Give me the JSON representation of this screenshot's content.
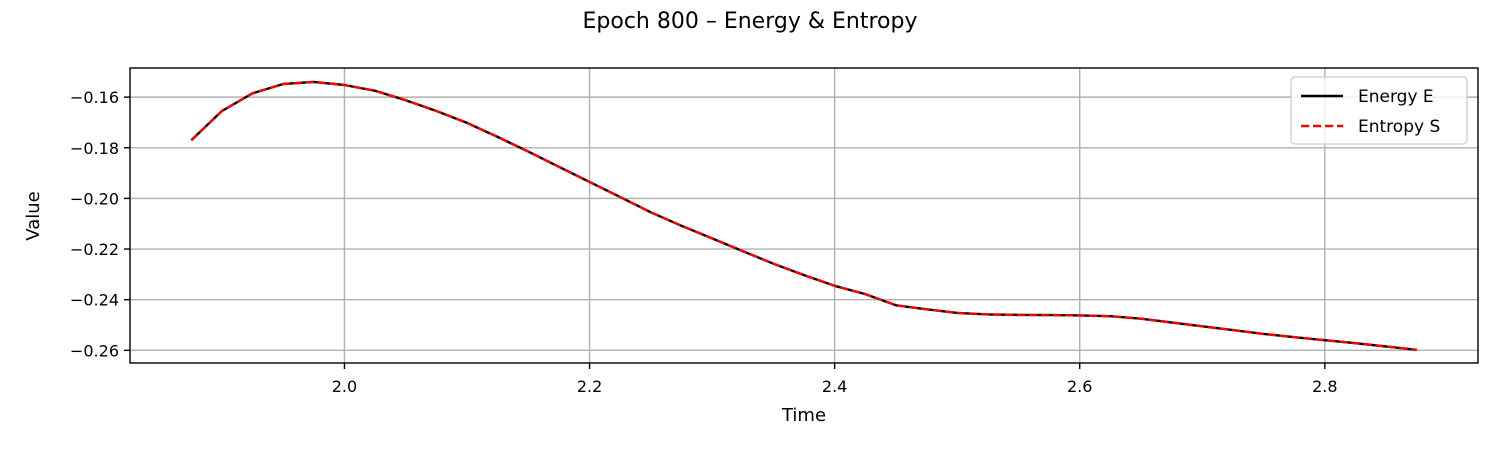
{
  "chart_data": {
    "type": "line",
    "title": "Epoch 800 – Energy & Entropy",
    "xlabel": "Time",
    "ylabel": "Value",
    "xlim": [
      1.825,
      2.925
    ],
    "ylim": [
      -0.265,
      -0.1485
    ],
    "xticks": [
      2.0,
      2.2,
      2.4,
      2.6,
      2.8
    ],
    "xtick_labels": [
      "2.0",
      "2.2",
      "2.4",
      "2.6",
      "2.8"
    ],
    "yticks": [
      -0.16,
      -0.18,
      -0.2,
      -0.22,
      -0.24,
      -0.26
    ],
    "ytick_labels": [
      "−0.16",
      "−0.18",
      "−0.20",
      "−0.22",
      "−0.24",
      "−0.26"
    ],
    "grid": true,
    "legend_position": "top-right",
    "series": [
      {
        "name": "Energy E",
        "color": "#000000",
        "style": "solid",
        "x": [
          1.875,
          1.9,
          1.925,
          1.95,
          1.975,
          2.0,
          2.025,
          2.05,
          2.075,
          2.1,
          2.125,
          2.15,
          2.175,
          2.2,
          2.225,
          2.25,
          2.275,
          2.3,
          2.325,
          2.35,
          2.375,
          2.4,
          2.425,
          2.45,
          2.475,
          2.5,
          2.525,
          2.55,
          2.575,
          2.6,
          2.625,
          2.65,
          2.675,
          2.7,
          2.725,
          2.75,
          2.775,
          2.8,
          2.825,
          2.85,
          2.875
        ],
        "y": [
          -0.177,
          -0.1655,
          -0.1585,
          -0.1548,
          -0.154,
          -0.1552,
          -0.1575,
          -0.1612,
          -0.1655,
          -0.1702,
          -0.1757,
          -0.1815,
          -0.1875,
          -0.1935,
          -0.1995,
          -0.2055,
          -0.2108,
          -0.2158,
          -0.2208,
          -0.2258,
          -0.2303,
          -0.2345,
          -0.2378,
          -0.2422,
          -0.2438,
          -0.2452,
          -0.2458,
          -0.246,
          -0.2461,
          -0.2462,
          -0.2465,
          -0.2475,
          -0.249,
          -0.2505,
          -0.252,
          -0.2535,
          -0.2548,
          -0.256,
          -0.2572,
          -0.2585,
          -0.2598
        ]
      },
      {
        "name": "Entropy S",
        "color": "#ff0000",
        "style": "dashed",
        "x": [
          1.875,
          1.9,
          1.925,
          1.95,
          1.975,
          2.0,
          2.025,
          2.05,
          2.075,
          2.1,
          2.125,
          2.15,
          2.175,
          2.2,
          2.225,
          2.25,
          2.275,
          2.3,
          2.325,
          2.35,
          2.375,
          2.4,
          2.425,
          2.45,
          2.475,
          2.5,
          2.525,
          2.55,
          2.575,
          2.6,
          2.625,
          2.65,
          2.675,
          2.7,
          2.725,
          2.75,
          2.775,
          2.8,
          2.825,
          2.85,
          2.875
        ],
        "y": [
          -0.177,
          -0.1655,
          -0.1585,
          -0.1548,
          -0.154,
          -0.1552,
          -0.1575,
          -0.1612,
          -0.1655,
          -0.1702,
          -0.1757,
          -0.1815,
          -0.1875,
          -0.1935,
          -0.1995,
          -0.2055,
          -0.2108,
          -0.2158,
          -0.2208,
          -0.2258,
          -0.2303,
          -0.2345,
          -0.2378,
          -0.2422,
          -0.2438,
          -0.2452,
          -0.2458,
          -0.246,
          -0.2461,
          -0.2462,
          -0.2465,
          -0.2475,
          -0.249,
          -0.2505,
          -0.252,
          -0.2535,
          -0.2548,
          -0.256,
          -0.2572,
          -0.2585,
          -0.2598
        ]
      }
    ]
  }
}
